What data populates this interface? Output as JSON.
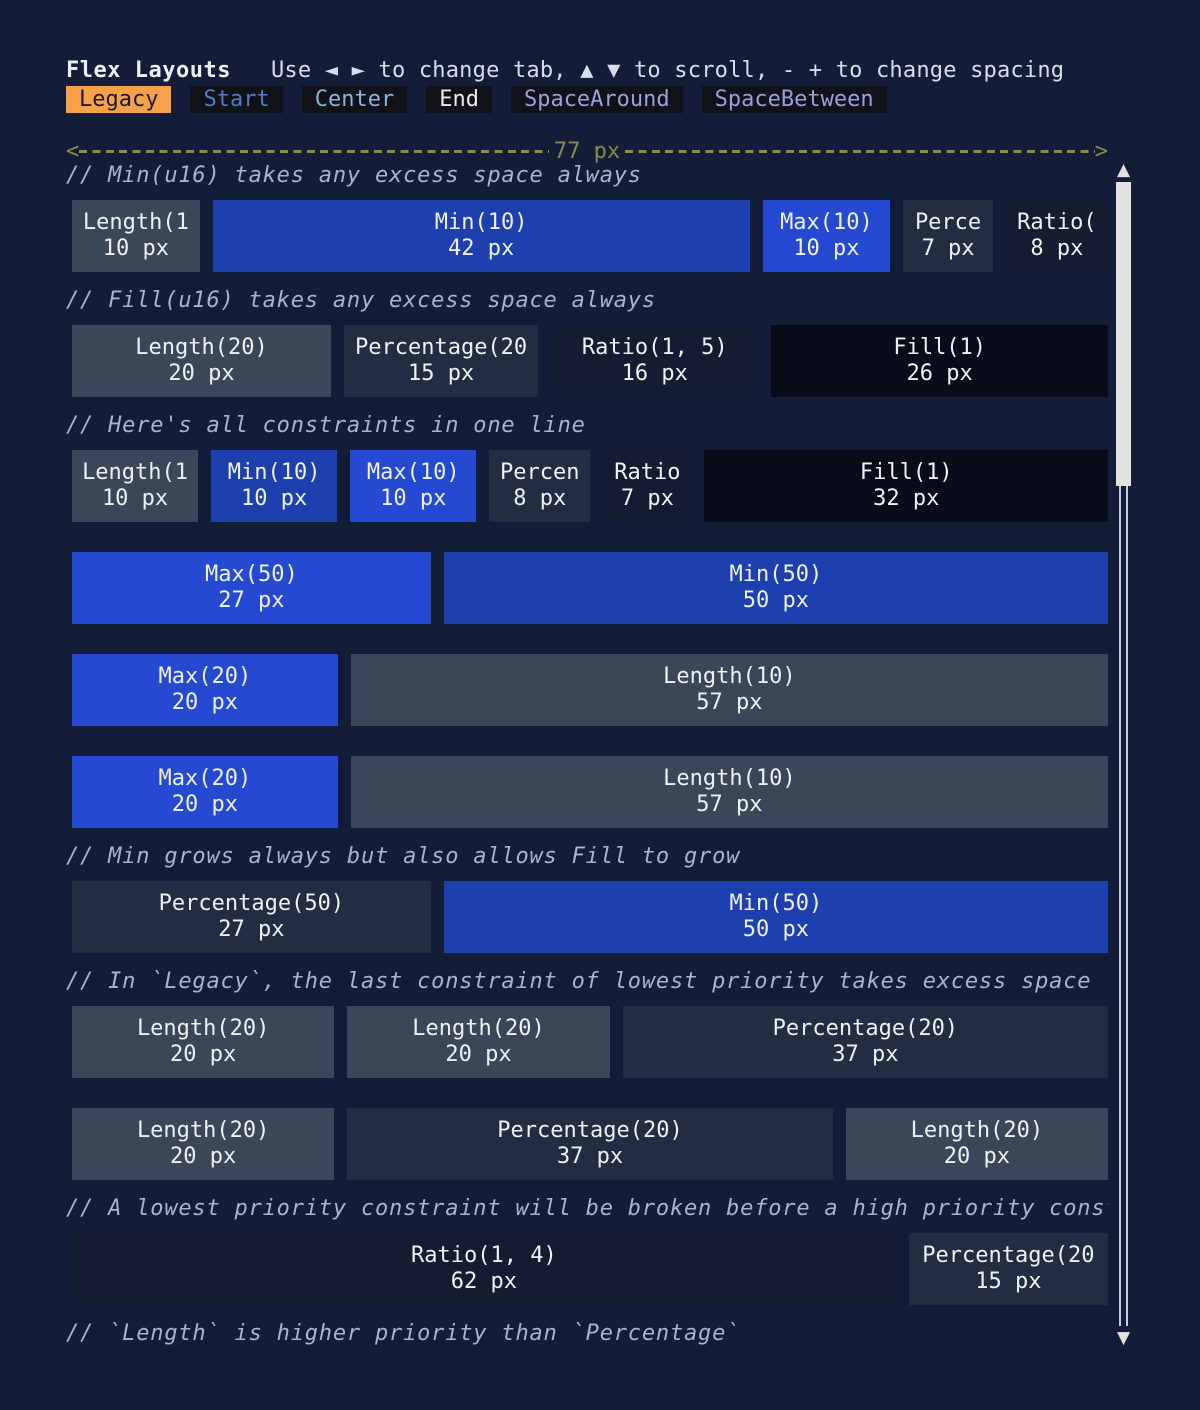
{
  "header": {
    "title": "Flex Layouts",
    "help": "Use ◄ ► to change tab, ▲ ▼  to scroll, - + to change spacing"
  },
  "tabs": [
    {
      "label": "Legacy",
      "active": true,
      "color": "#1A1B26"
    },
    {
      "label": "Start",
      "active": false,
      "color": "#4D7FC6"
    },
    {
      "label": "Center",
      "active": false,
      "color": "#8AB4DE"
    },
    {
      "label": "End",
      "active": false,
      "color": "#E8EAF0"
    },
    {
      "label": "SpaceAround",
      "active": false,
      "color": "#97A1E0"
    },
    {
      "label": "SpaceBetween",
      "active": false,
      "color": "#97A1E0"
    }
  ],
  "ruler": {
    "left_arrow": "<",
    "label": "77 px",
    "right_arrow": ">"
  },
  "colors": {
    "background": "#131D37",
    "tab_bg": "#111118",
    "tab_active_bg": "#F7A14A",
    "tab_active_text": "#1A1B26",
    "ruler": "#8B8B4B",
    "comment": "#A9B3C9",
    "box_text": "#EEF1F5",
    "scrollbar": "#E2E2E0",
    "box": {
      "length": "#3A4759",
      "min": "#1E40AF",
      "max": "#2549D0",
      "percentage": "#222D42",
      "ratio": "#131C30",
      "fill": "#070C18"
    }
  },
  "sections": [
    {
      "comment": "// Min(u16) takes any excess space always",
      "boxes": [
        {
          "label": "Length(1",
          "size": "10 px",
          "type": "length",
          "weight": 10
        },
        {
          "label": "Min(10)",
          "size": "42 px",
          "type": "min",
          "weight": 42
        },
        {
          "label": "Max(10)",
          "size": "10 px",
          "type": "max",
          "weight": 10
        },
        {
          "label": "Perce",
          "size": "7 px",
          "type": "percentage",
          "weight": 7
        },
        {
          "label": "Ratio(",
          "size": "8 px",
          "type": "ratio",
          "weight": 8
        }
      ]
    },
    {
      "comment": "// Fill(u16) takes any excess space always",
      "boxes": [
        {
          "label": "Length(20)",
          "size": "20 px",
          "type": "length",
          "weight": 20
        },
        {
          "label": "Percentage(20",
          "size": "15 px",
          "type": "percentage",
          "weight": 15
        },
        {
          "label": "Ratio(1, 5)",
          "size": "16 px",
          "type": "ratio",
          "weight": 16
        },
        {
          "label": "Fill(1)",
          "size": "26 px",
          "type": "fill",
          "weight": 26
        }
      ]
    },
    {
      "comment": "// Here's all constraints in one line",
      "boxes": [
        {
          "label": "Length(1",
          "size": "10 px",
          "type": "length",
          "weight": 10
        },
        {
          "label": "Min(10)",
          "size": "10 px",
          "type": "min",
          "weight": 10
        },
        {
          "label": "Max(10)",
          "size": "10 px",
          "type": "max",
          "weight": 10
        },
        {
          "label": "Percen",
          "size": "8 px",
          "type": "percentage",
          "weight": 8
        },
        {
          "label": "Ratio",
          "size": "7 px",
          "type": "ratio",
          "weight": 7
        },
        {
          "label": "Fill(1)",
          "size": "32 px",
          "type": "fill",
          "weight": 32
        }
      ]
    },
    {
      "comment": null,
      "boxes": [
        {
          "label": "Max(50)",
          "size": "27 px",
          "type": "max",
          "weight": 27
        },
        {
          "label": "Min(50)",
          "size": "50 px",
          "type": "min",
          "weight": 50
        }
      ]
    },
    {
      "comment": null,
      "boxes": [
        {
          "label": "Max(20)",
          "size": "20 px",
          "type": "max",
          "weight": 20
        },
        {
          "label": "Length(10)",
          "size": "57 px",
          "type": "length",
          "weight": 57
        }
      ]
    },
    {
      "comment": null,
      "boxes": [
        {
          "label": "Max(20)",
          "size": "20 px",
          "type": "max",
          "weight": 20
        },
        {
          "label": "Length(10)",
          "size": "57 px",
          "type": "length",
          "weight": 57
        }
      ]
    },
    {
      "comment": "// Min grows always but also allows Fill to grow",
      "boxes": [
        {
          "label": "Percentage(50)",
          "size": "27 px",
          "type": "percentage",
          "weight": 27
        },
        {
          "label": "Min(50)",
          "size": "50 px",
          "type": "min",
          "weight": 50
        }
      ]
    },
    {
      "comment": "// In `Legacy`, the last constraint of lowest priority takes excess space",
      "boxes": [
        {
          "label": "Length(20)",
          "size": "20 px",
          "type": "length",
          "weight": 20
        },
        {
          "label": "Length(20)",
          "size": "20 px",
          "type": "length",
          "weight": 20
        },
        {
          "label": "Percentage(20)",
          "size": "37 px",
          "type": "percentage",
          "weight": 37
        }
      ]
    },
    {
      "comment": null,
      "boxes": [
        {
          "label": "Length(20)",
          "size": "20 px",
          "type": "length",
          "weight": 20
        },
        {
          "label": "Percentage(20)",
          "size": "37 px",
          "type": "percentage",
          "weight": 37
        },
        {
          "label": "Length(20)",
          "size": "20 px",
          "type": "length",
          "weight": 20
        }
      ]
    },
    {
      "comment": "// A lowest priority constraint will be broken before a high priority constra",
      "boxes": [
        {
          "label": "Ratio(1, 4)",
          "size": "62 px",
          "type": "ratio",
          "weight": 62
        },
        {
          "label": "Percentage(20",
          "size": "15 px",
          "type": "percentage",
          "weight": 15
        }
      ]
    },
    {
      "comment": "// `Length` is higher priority than `Percentage`",
      "boxes": []
    }
  ],
  "scrollbar": {
    "up_arrow": "▲",
    "down_arrow": "▼"
  }
}
